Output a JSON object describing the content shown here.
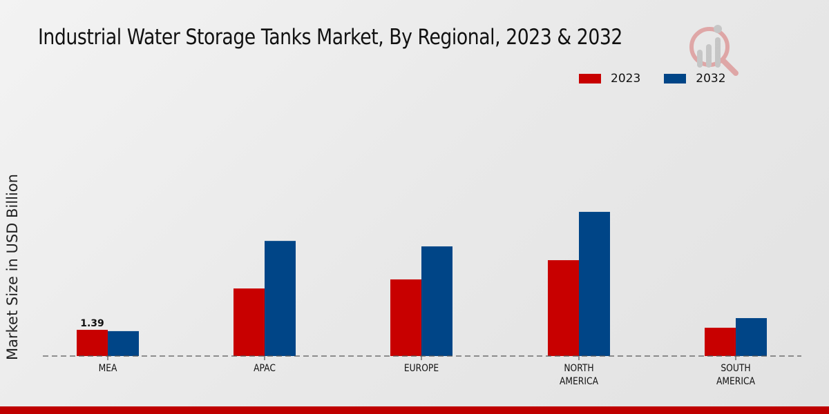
{
  "chart_data": {
    "type": "bar",
    "title": "Industrial Water Storage Tanks Market, By Regional, 2023 & 2032",
    "xlabel": "",
    "ylabel": "Market Size in USD Billion",
    "categories": [
      "MEA",
      "APAC",
      "EUROPE",
      "NORTH AMERICA",
      "SOUTH AMERICA"
    ],
    "category_lines": [
      [
        "MEA"
      ],
      [
        "APAC"
      ],
      [
        "EUROPE"
      ],
      [
        "NORTH",
        "AMERICA"
      ],
      [
        "SOUTH",
        "AMERICA"
      ]
    ],
    "series": [
      {
        "name": "2023",
        "color": "#c80000",
        "values": [
          1.39,
          3.58,
          4.06,
          5.08,
          1.5
        ]
      },
      {
        "name": "2032",
        "color": "#004587",
        "values": [
          1.32,
          6.1,
          5.81,
          7.64,
          2.01
        ]
      }
    ],
    "data_labels": [
      {
        "series": "2023",
        "category": "MEA",
        "text": "1.39"
      }
    ],
    "ylim": [
      0,
      10
    ],
    "grid": false,
    "legend_position": "top-right",
    "baseline_style": "dashed"
  },
  "legend": [
    {
      "label": "2023",
      "color": "#c80000"
    },
    {
      "label": "2032",
      "color": "#004587"
    }
  ],
  "footer_color": "#bf0000"
}
